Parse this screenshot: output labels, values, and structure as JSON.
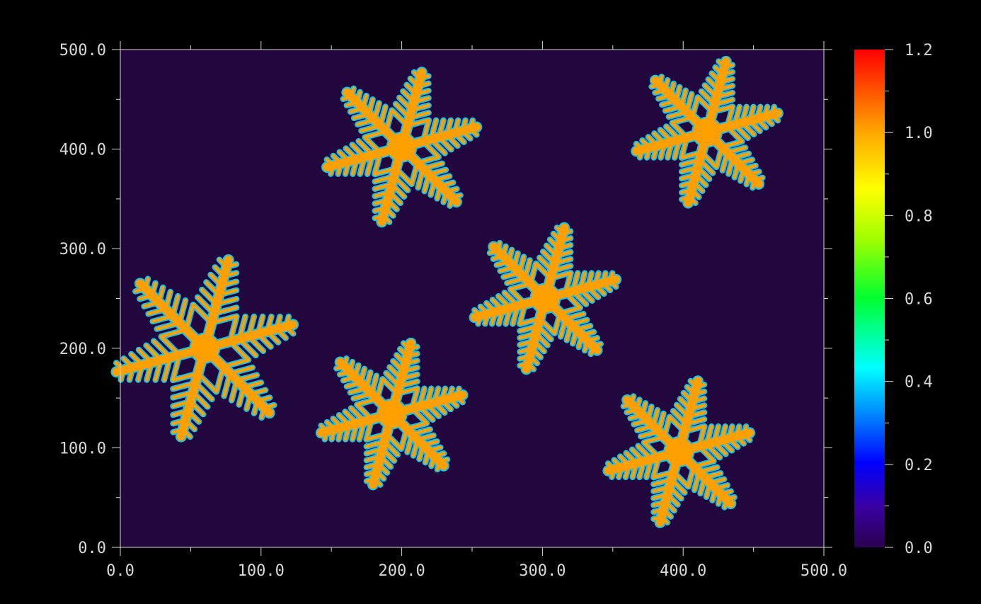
{
  "chart_data": {
    "type": "heatmap",
    "title": "",
    "xlabel": "",
    "ylabel": "",
    "xlim": [
      0,
      500
    ],
    "ylim": [
      0,
      500
    ],
    "x_ticks": [
      "0.0",
      "100.0",
      "200.0",
      "300.0",
      "400.0",
      "500.0"
    ],
    "y_ticks": [
      "0.0",
      "100.0",
      "200.0",
      "300.0",
      "400.0",
      "500.0"
    ],
    "colorbar": {
      "range": [
        0.0,
        1.2
      ],
      "ticks": [
        "0.0",
        "0.2",
        "0.4",
        "0.6",
        "0.8",
        "1.0",
        "1.2"
      ],
      "colormap": "rainbow"
    },
    "background_value": 0.0,
    "crystal_value": 1.0,
    "crystals": [
      {
        "cx": 60,
        "cy": 200,
        "arm_length": 65,
        "rotation_deg": 15
      },
      {
        "cx": 200,
        "cy": 402,
        "arm_length": 55,
        "rotation_deg": 15
      },
      {
        "cx": 417,
        "cy": 417,
        "arm_length": 52,
        "rotation_deg": 15
      },
      {
        "cx": 302,
        "cy": 250,
        "arm_length": 52,
        "rotation_deg": 15
      },
      {
        "cx": 193,
        "cy": 134,
        "arm_length": 52,
        "rotation_deg": 15
      },
      {
        "cx": 397,
        "cy": 96,
        "arm_length": 52,
        "rotation_deg": 15
      }
    ],
    "grid": false
  },
  "colors": {
    "background": "#000000",
    "field": "#22073e",
    "crystal": "#ffa000",
    "crystal_edge": "#19c2e6",
    "axis": "#d8d8d8"
  }
}
